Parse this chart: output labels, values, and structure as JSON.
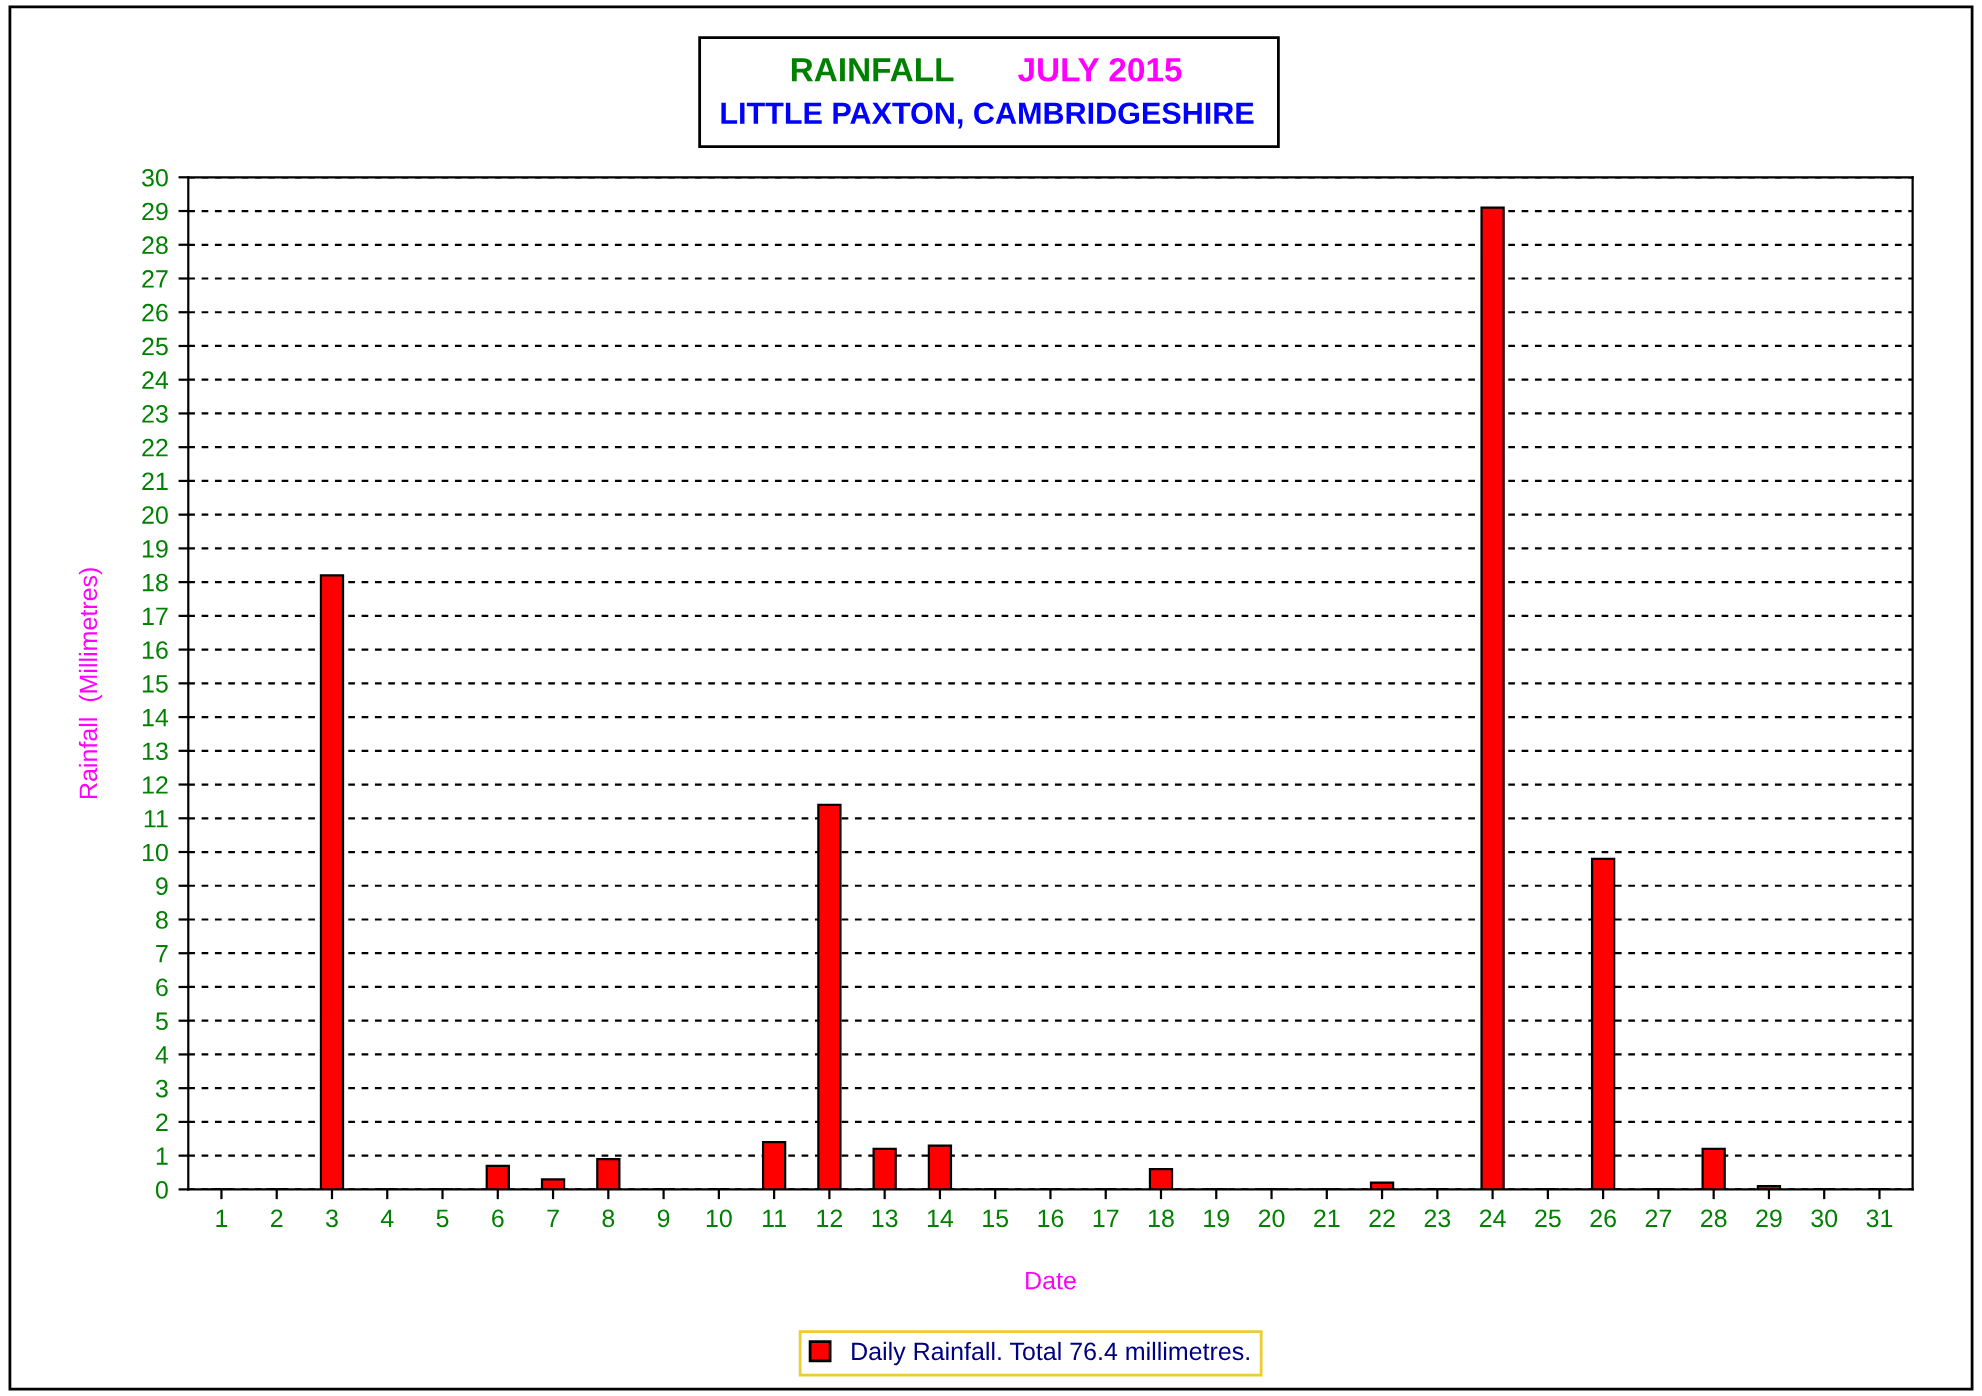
{
  "chart_data": {
    "type": "bar",
    "title": "RAINFALL",
    "subtitle": "JULY 2015",
    "annotations": [
      "LITTLE PAXTON, CAMBRIDGESHIRE"
    ],
    "xlabel": "Date",
    "ylabel": "Rainfall  (Millimetres)",
    "categories": [
      "1",
      "2",
      "3",
      "4",
      "5",
      "6",
      "7",
      "8",
      "9",
      "10",
      "11",
      "12",
      "13",
      "14",
      "15",
      "16",
      "17",
      "18",
      "19",
      "20",
      "21",
      "22",
      "23",
      "24",
      "25",
      "26",
      "27",
      "28",
      "29",
      "30",
      "31"
    ],
    "series": [
      {
        "name": "Daily Rainfall. Total 76.4 millimetres.",
        "color": "#ff0000",
        "values": [
          0,
          0,
          18.2,
          0,
          0,
          0.7,
          0.3,
          0.9,
          0,
          0,
          1.4,
          11.4,
          1.2,
          1.3,
          0,
          0,
          0,
          0.6,
          0,
          0,
          0,
          0.2,
          0,
          29.1,
          0,
          9.8,
          0,
          1.2,
          0.1,
          0,
          0
        ]
      }
    ],
    "ylim": [
      0,
      30
    ],
    "yticks": [
      0,
      1,
      2,
      3,
      4,
      5,
      6,
      7,
      8,
      9,
      10,
      11,
      12,
      13,
      14,
      15,
      16,
      17,
      18,
      19,
      20,
      21,
      22,
      23,
      24,
      25,
      26,
      27,
      28,
      29,
      30
    ],
    "grid": "y",
    "legend": "bottom"
  }
}
